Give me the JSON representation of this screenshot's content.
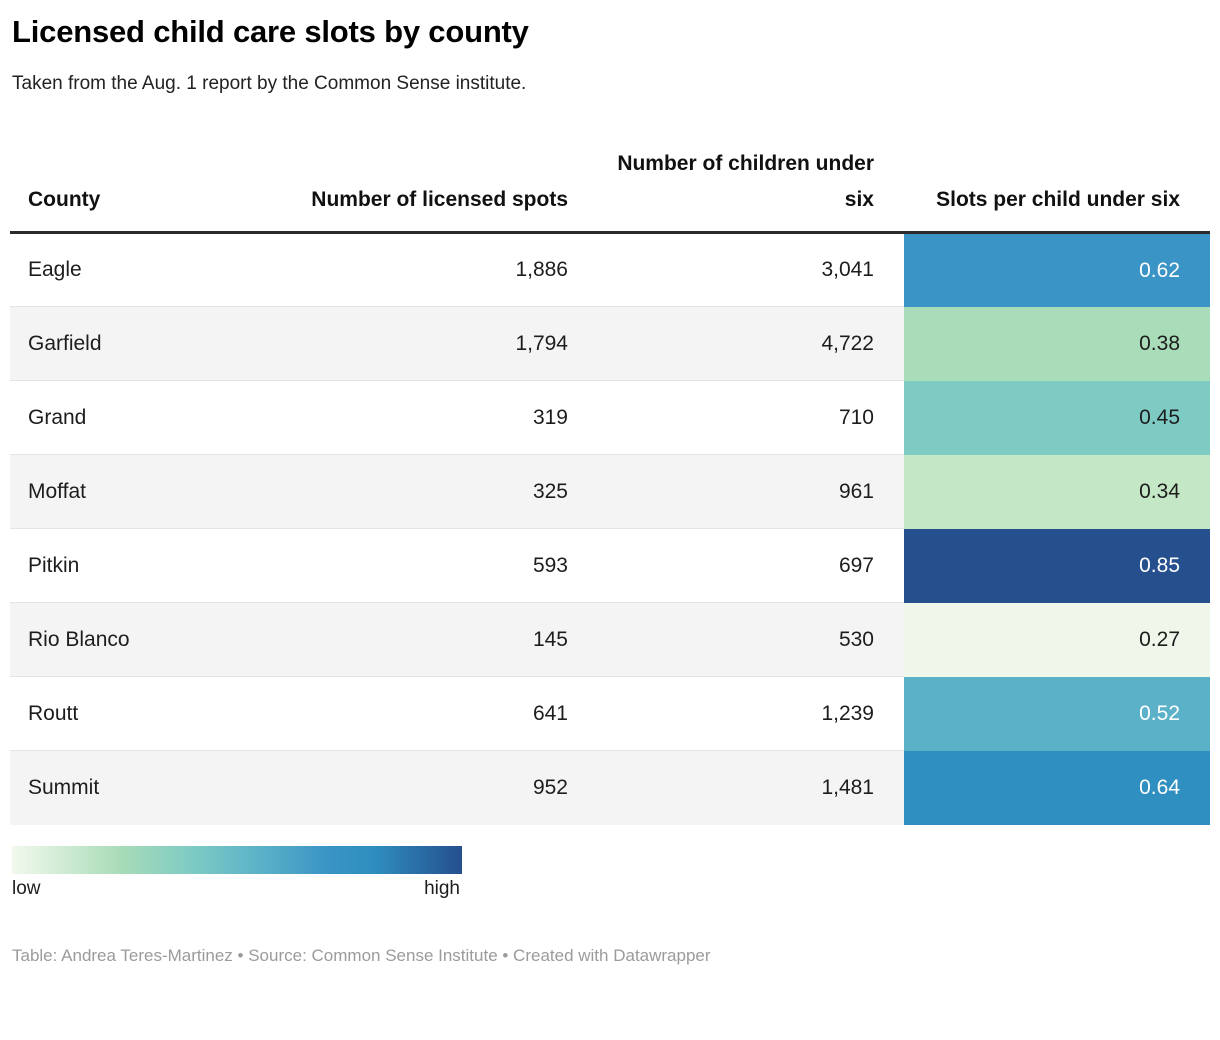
{
  "header": {
    "title": "Licensed child care slots by county",
    "subtitle": "Taken from the Aug. 1 report by the Common Sense institute."
  },
  "table": {
    "columns": [
      "County",
      "Number of licensed spots",
      "Number of children under six",
      "Slots per child under six"
    ],
    "rows": [
      {
        "county": "Eagle",
        "licensed_spots": "1,886",
        "children_under_six": "3,041",
        "slots_per_child": "0.62",
        "cell_bg": "#3a94c5",
        "cell_fg": "#ffffff"
      },
      {
        "county": "Garfield",
        "licensed_spots": "1,794",
        "children_under_six": "4,722",
        "slots_per_child": "0.38",
        "cell_bg": "#a9dcb8",
        "cell_fg": "#1d1d1d"
      },
      {
        "county": "Grand",
        "licensed_spots": "319",
        "children_under_six": "710",
        "slots_per_child": "0.45",
        "cell_bg": "#7ecbc4",
        "cell_fg": "#1d1d1d"
      },
      {
        "county": "Moffat",
        "licensed_spots": "325",
        "children_under_six": "961",
        "slots_per_child": "0.34",
        "cell_bg": "#c4e7c5",
        "cell_fg": "#1d1d1d"
      },
      {
        "county": "Pitkin",
        "licensed_spots": "593",
        "children_under_six": "697",
        "slots_per_child": "0.85",
        "cell_bg": "#264f8e",
        "cell_fg": "#ffffff"
      },
      {
        "county": "Rio Blanco",
        "licensed_spots": "145",
        "children_under_six": "530",
        "slots_per_child": "0.27",
        "cell_bg": "#eff7ea",
        "cell_fg": "#1d1d1d"
      },
      {
        "county": "Routt",
        "licensed_spots": "641",
        "children_under_six": "1,239",
        "slots_per_child": "0.52",
        "cell_bg": "#5bb2c8",
        "cell_fg": "#ffffff"
      },
      {
        "county": "Summit",
        "licensed_spots": "952",
        "children_under_six": "1,481",
        "slots_per_child": "0.64",
        "cell_bg": "#2f8fc0",
        "cell_fg": "#ffffff"
      }
    ]
  },
  "legend": {
    "low_label": "low",
    "high_label": "high",
    "gradient_stops": [
      "#f2f9ed 0%",
      "#a9dcb8 24%",
      "#7ecbc4 40%",
      "#5bb2c8 55%",
      "#3a94c5 70%",
      "#2f8fc0 80%",
      "#264f8e 100%"
    ]
  },
  "footer": {
    "text": "Table: Andrea Teres-Martinez • Source: Common Sense Institute • Created with Datawrapper"
  },
  "chart_data": {
    "type": "table",
    "title": "Licensed child care slots by county",
    "subtitle": "Taken from the Aug. 1 report by the Common Sense institute.",
    "columns": [
      "County",
      "Number of licensed spots",
      "Number of children under six",
      "Slots per child under six"
    ],
    "rows": [
      [
        "Eagle",
        1886,
        3041,
        0.62
      ],
      [
        "Garfield",
        1794,
        4722,
        0.38
      ],
      [
        "Grand",
        319,
        710,
        0.45
      ],
      [
        "Moffat",
        325,
        961,
        0.34
      ],
      [
        "Pitkin",
        593,
        697,
        0.85
      ],
      [
        "Rio Blanco",
        145,
        530,
        0.27
      ],
      [
        "Routt",
        641,
        1239,
        0.52
      ],
      [
        "Summit",
        952,
        1481,
        0.64
      ]
    ],
    "heatmap_column": "Slots per child under six",
    "color_scale": {
      "type": "continuous",
      "low_label": "low",
      "high_label": "high",
      "low_color": "#f2f9ed",
      "high_color": "#264f8e"
    }
  }
}
